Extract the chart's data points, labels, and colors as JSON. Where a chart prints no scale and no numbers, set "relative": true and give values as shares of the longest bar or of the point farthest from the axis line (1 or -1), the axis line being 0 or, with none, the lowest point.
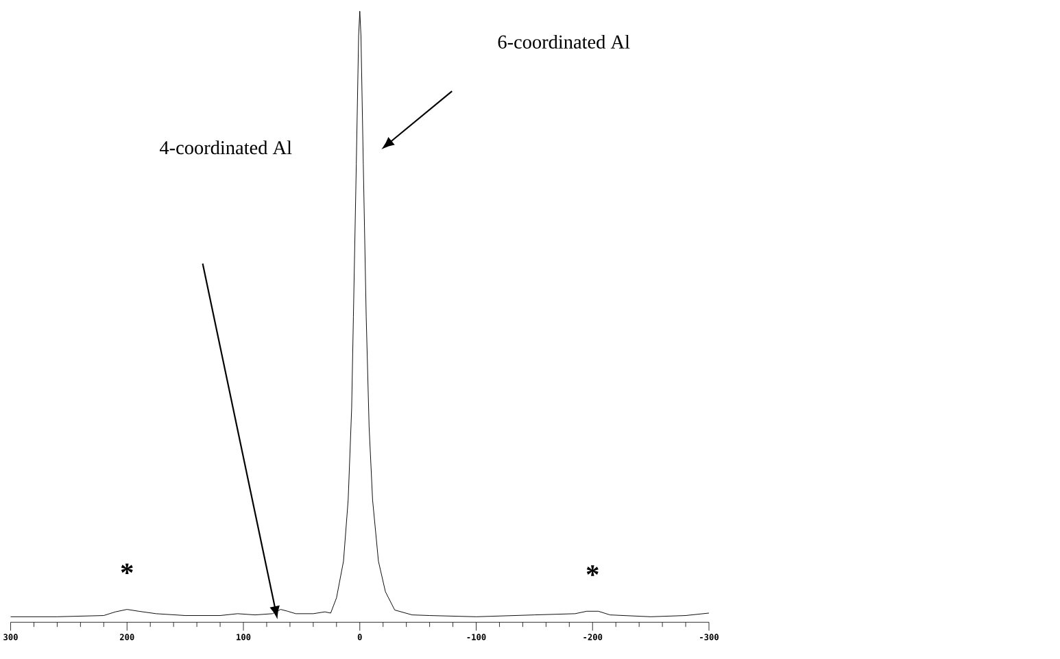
{
  "chart_data": {
    "type": "line",
    "relative": true,
    "color": "#000000",
    "marker": "none",
    "line_style": "solid",
    "tick_labels": "x",
    "xlim": [
      300,
      -300
    ],
    "xticks": [
      300,
      {
        "value": 280,
        "label": null
      },
      {
        "value": 260,
        "label": null
      },
      {
        "value": 240,
        "label": null
      },
      {
        "value": 220,
        "label": null
      },
      200,
      {
        "value": 180,
        "label": null
      },
      {
        "value": 160,
        "label": null
      },
      {
        "value": 140,
        "label": null
      },
      {
        "value": 120,
        "label": null
      },
      100,
      {
        "value": 80,
        "label": null
      },
      {
        "value": 60,
        "label": null
      },
      {
        "value": 40,
        "label": null
      },
      {
        "value": 20,
        "label": null
      },
      0,
      {
        "value": -20,
        "label": null
      },
      {
        "value": -40,
        "label": null
      },
      {
        "value": -60,
        "label": null
      },
      {
        "value": -80,
        "label": null
      },
      -100,
      {
        "value": -120,
        "label": null
      },
      {
        "value": -140,
        "label": null
      },
      {
        "value": -160,
        "label": null
      },
      {
        "value": -180,
        "label": null
      },
      -200,
      {
        "value": -220,
        "label": null
      },
      {
        "value": -240,
        "label": null
      },
      {
        "value": -260,
        "label": null
      },
      {
        "value": -280,
        "label": null
      },
      -300
    ],
    "x": [
      300,
      260,
      220,
      210,
      200,
      190,
      175,
      150,
      120,
      105,
      90,
      75,
      68,
      62,
      55,
      40,
      30,
      25,
      20,
      14,
      10,
      7,
      5.5,
      3,
      1,
      0,
      -1,
      -3,
      -5.5,
      -8,
      -11,
      -16,
      -22,
      -30,
      -45,
      -60,
      -100,
      -150,
      -185,
      -195,
      -205,
      -215,
      -250,
      -280,
      -300
    ],
    "values": [
      0.009,
      0.009,
      0.011,
      0.017,
      0.021,
      0.018,
      0.014,
      0.011,
      0.011,
      0.014,
      0.012,
      0.014,
      0.021,
      0.018,
      0.014,
      0.014,
      0.017,
      0.015,
      0.04,
      0.1,
      0.2,
      0.35,
      0.5,
      0.75,
      0.96,
      1.0,
      0.96,
      0.75,
      0.5,
      0.32,
      0.2,
      0.1,
      0.05,
      0.02,
      0.012,
      0.011,
      0.009,
      0.012,
      0.014,
      0.018,
      0.018,
      0.012,
      0.009,
      0.011,
      0.015
    ],
    "annotations": [
      "6-coordinated Al",
      "4-coordinated Al",
      {
        "text": "*",
        "x": 200,
        "y": 0.021
      },
      {
        "text": "*",
        "x": -200,
        "y": 0.018
      }
    ]
  }
}
